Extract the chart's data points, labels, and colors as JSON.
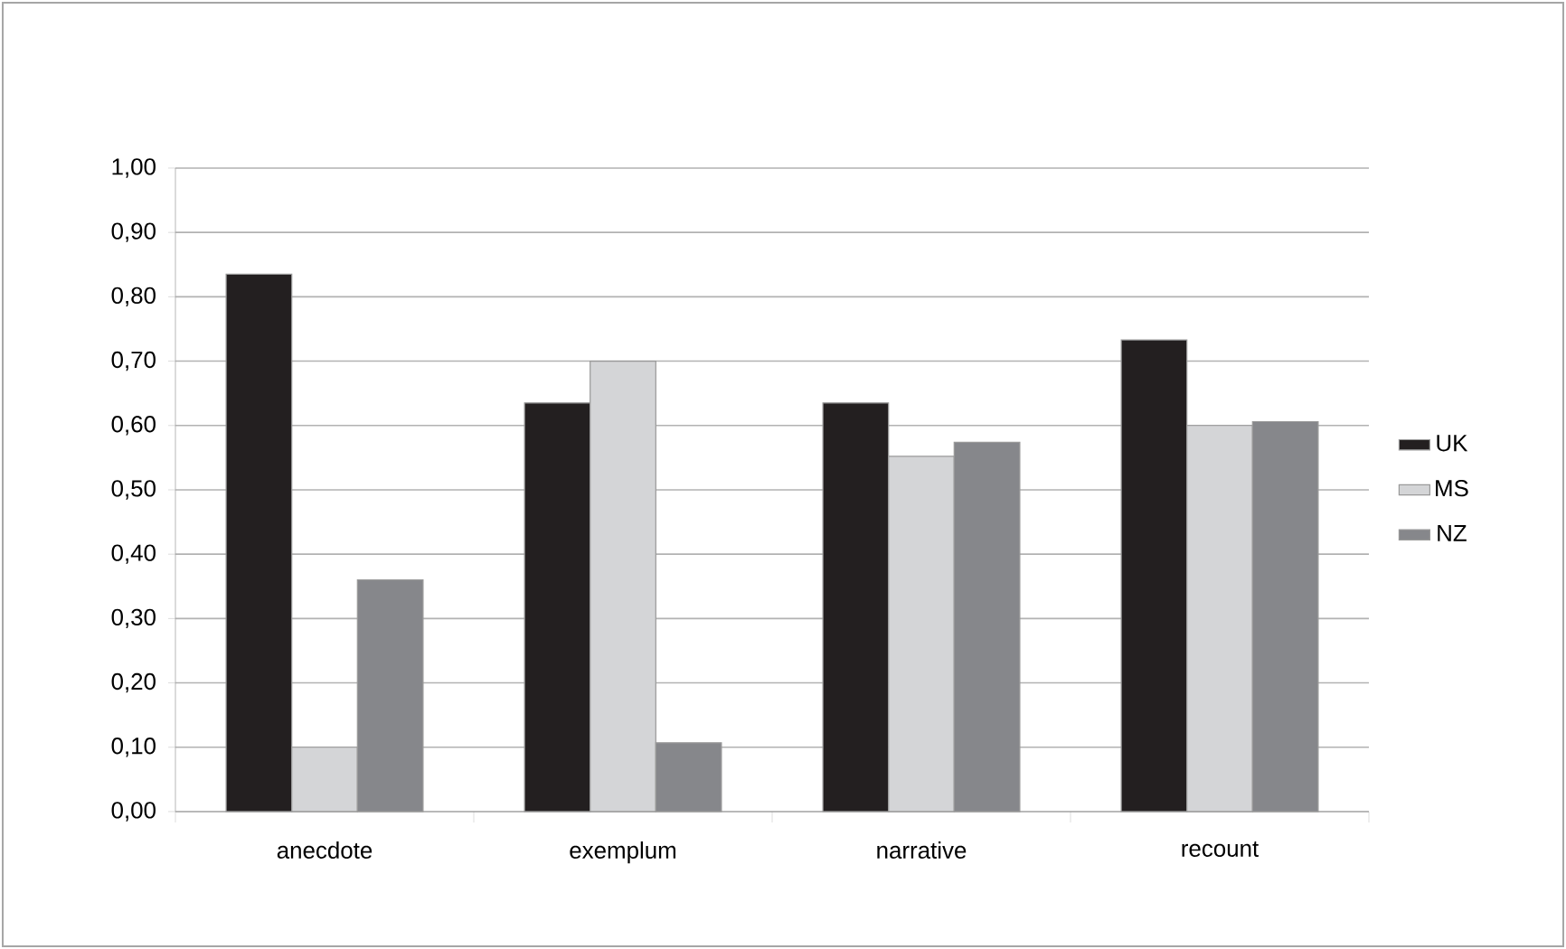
{
  "chart_data": {
    "type": "bar",
    "categories": [
      "anecdote",
      "exemplum",
      "narrative",
      "recount"
    ],
    "series": [
      {
        "name": "UK",
        "color": "#231f20",
        "values": [
          0.835,
          0.635,
          0.635,
          0.733
        ]
      },
      {
        "name": "MS",
        "color": "#d4d5d7",
        "values": [
          0.1,
          0.7,
          0.552,
          0.6
        ]
      },
      {
        "name": "NZ",
        "color": "#86878b",
        "values": [
          0.36,
          0.107,
          0.574,
          0.606
        ]
      }
    ],
    "ylim": [
      0,
      1
    ],
    "yticks": [
      {
        "value": 0,
        "label": "0,00"
      },
      {
        "value": 0.1,
        "label": "0,10"
      },
      {
        "value": 0.2,
        "label": "0,20"
      },
      {
        "value": 0.3,
        "label": "0,30"
      },
      {
        "value": 0.4,
        "label": "0,40"
      },
      {
        "value": 0.5,
        "label": "0,50"
      },
      {
        "value": 0.6,
        "label": "0,60"
      },
      {
        "value": 0.7,
        "label": "0,70"
      },
      {
        "value": 0.8,
        "label": "0,80"
      },
      {
        "value": 0.9,
        "label": "0,90"
      },
      {
        "value": 1,
        "label": "1,00"
      }
    ],
    "grid": "y",
    "legend": "right"
  }
}
